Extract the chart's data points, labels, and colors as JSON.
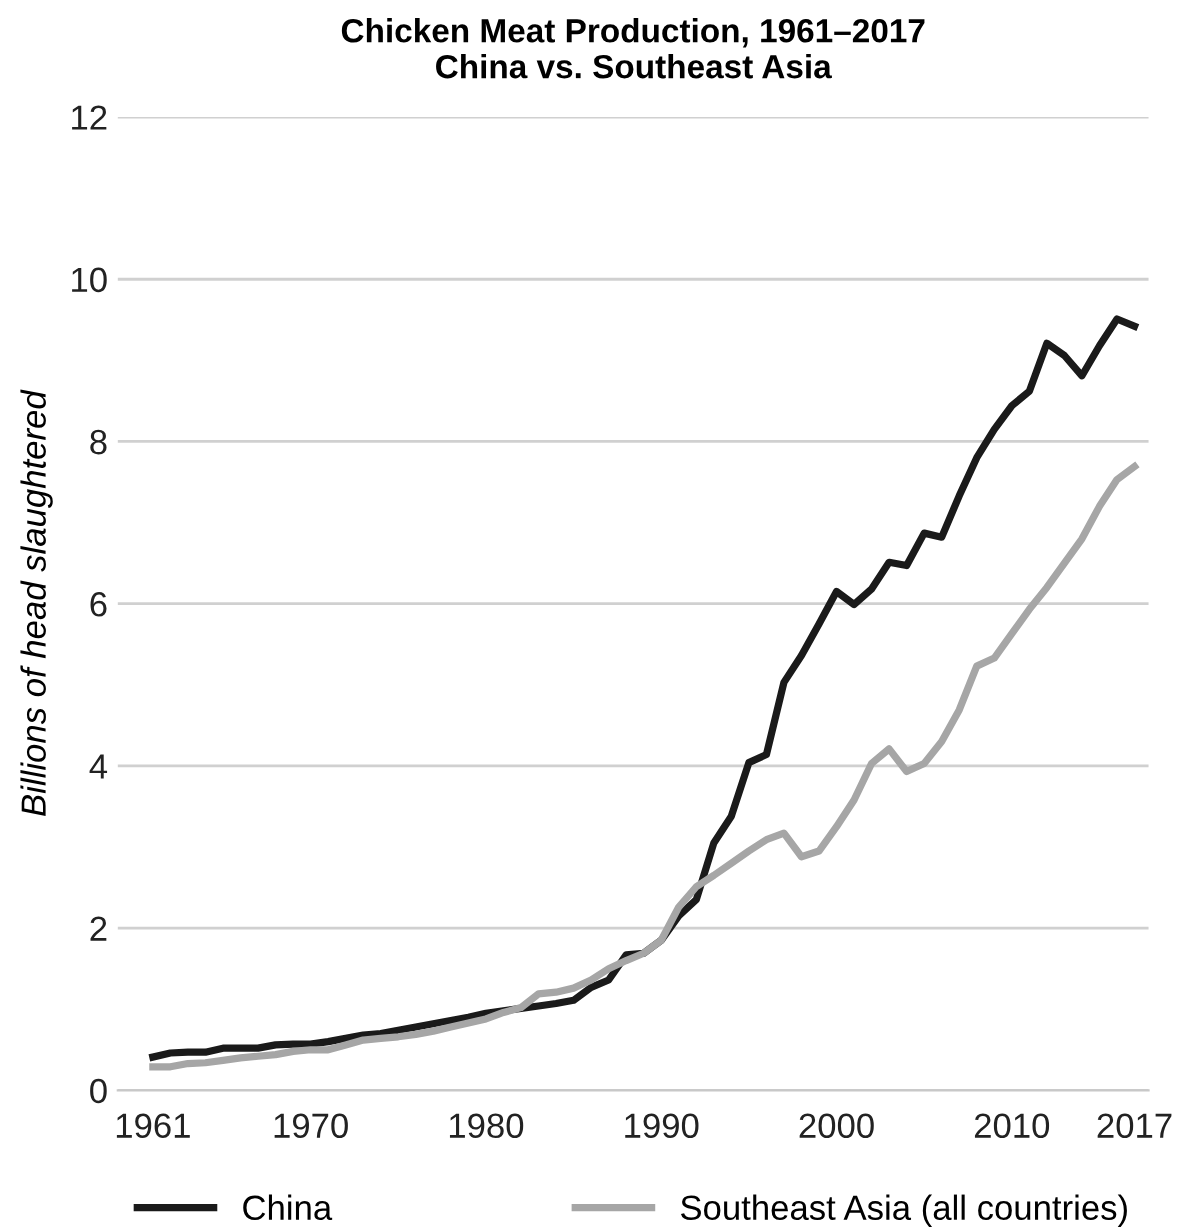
{
  "chart_data": {
    "type": "line",
    "title": "Chicken Meat Production, 1961–2017\nChina vs. Southeast Asia",
    "ylabel": "Billions of head slaughtered",
    "x": [
      1961,
      1962,
      1963,
      1964,
      1965,
      1966,
      1967,
      1968,
      1969,
      1970,
      1971,
      1972,
      1973,
      1974,
      1975,
      1976,
      1977,
      1978,
      1979,
      1980,
      1981,
      1982,
      1983,
      1984,
      1985,
      1986,
      1987,
      1988,
      1989,
      1990,
      1991,
      1992,
      1993,
      1994,
      1995,
      1996,
      1997,
      1998,
      1999,
      2000,
      2001,
      2002,
      2003,
      2004,
      2005,
      2006,
      2007,
      2008,
      2009,
      2010,
      2011,
      2012,
      2013,
      2014,
      2015,
      2016,
      2017
    ],
    "series": [
      {
        "name": "China",
        "color": "#1a1a1a",
        "values": [
          0.41,
          0.46,
          0.47,
          0.47,
          0.52,
          0.52,
          0.52,
          0.56,
          0.57,
          0.57,
          0.6,
          0.64,
          0.68,
          0.7,
          0.74,
          0.78,
          0.82,
          0.86,
          0.9,
          0.95,
          0.98,
          1.01,
          1.04,
          1.07,
          1.11,
          1.27,
          1.36,
          1.67,
          1.69,
          1.85,
          2.15,
          2.35,
          3.05,
          3.38,
          4.04,
          4.14,
          5.03,
          5.36,
          5.75,
          6.15,
          5.99,
          6.18,
          6.51,
          6.47,
          6.87,
          6.82,
          7.33,
          7.8,
          8.15,
          8.44,
          8.62,
          9.21,
          9.06,
          8.81,
          9.18,
          9.51,
          9.42
        ]
      },
      {
        "name": "Southeast Asia (all countries)",
        "color": "#a6a6a6",
        "values": [
          0.29,
          0.29,
          0.33,
          0.34,
          0.37,
          0.4,
          0.42,
          0.44,
          0.48,
          0.5,
          0.5,
          0.56,
          0.62,
          0.64,
          0.66,
          0.69,
          0.73,
          0.78,
          0.83,
          0.88,
          0.96,
          1.02,
          1.19,
          1.21,
          1.26,
          1.36,
          1.5,
          1.6,
          1.69,
          1.85,
          2.26,
          2.51,
          2.65,
          2.8,
          2.95,
          3.09,
          3.17,
          2.88,
          2.95,
          3.25,
          3.58,
          4.03,
          4.21,
          3.93,
          4.03,
          4.3,
          4.69,
          5.23,
          5.33,
          5.63,
          5.93,
          6.2,
          6.5,
          6.8,
          7.2,
          7.53,
          7.69
        ]
      }
    ],
    "xlim": [
      1959,
      2017.8
    ],
    "xticks": [
      1961,
      1970,
      1980,
      1990,
      2000,
      2010,
      2017
    ],
    "ylim": [
      0,
      12
    ],
    "yticks": [
      0,
      2,
      4,
      6,
      8,
      10,
      12
    ],
    "grid": "y",
    "legend": "bottom",
    "marker": "none",
    "line_style": "solid"
  }
}
